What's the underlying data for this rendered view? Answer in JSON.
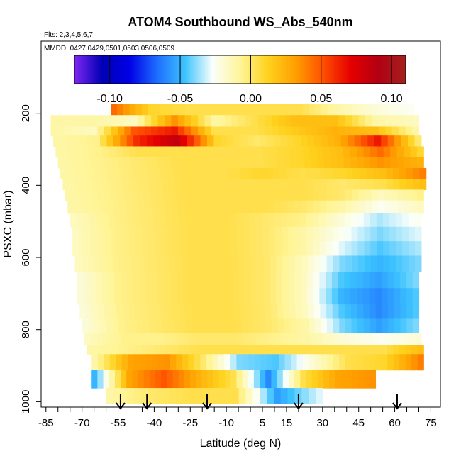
{
  "chart_data": {
    "type": "heatmap",
    "title": "ATOM4 Southbound WS_Abs_540nm",
    "annotations": {
      "flights": "Flts: 2,3,4,5,6,7",
      "dates": "MMDD: 0427,0429,0501,0503,0506,0509"
    },
    "xlabel": "Latitude (deg N)",
    "ylabel": "PSXC (mbar)",
    "x_range": [
      -87,
      79
    ],
    "y_range": [
      1015,
      0
    ],
    "y_inverted": true,
    "x_ticks": [
      -85,
      -70,
      -55,
      -40,
      -25,
      -10,
      5,
      15,
      30,
      45,
      60,
      75
    ],
    "x_minor_tick_step": 5,
    "y_ticks": [
      200,
      400,
      600,
      800,
      1000
    ],
    "colorbar": {
      "range": [
        -0.125,
        0.11
      ],
      "ticks": [
        -0.1,
        -0.05,
        0.0,
        0.05,
        0.1
      ],
      "tick_labels": [
        "-0.10",
        "-0.05",
        "0.00",
        "0.05",
        "0.10"
      ],
      "colors": [
        "#7f26f2",
        "#0000b4",
        "#0000e6",
        "#1e6eff",
        "#3cc3ff",
        "#fafffa",
        "#fff59b",
        "#ffd21e",
        "#ffa000",
        "#ff5000",
        "#e60000",
        "#b20012",
        "#a3201e"
      ]
    },
    "layers": [
      {
        "p": [
          175,
          205
        ],
        "lat": [
          -58,
          68
        ],
        "values": [
          0.045,
          0.01,
          0.005,
          0.005,
          0.005,
          0.005,
          -0.01,
          -0.02,
          -0.025
        ]
      },
      {
        "p": [
          205,
          237
        ],
        "lat": [
          -83,
          70
        ],
        "values": [
          -0.01,
          -0.01,
          -0.015,
          0.035,
          -0.01,
          0.005,
          0.02,
          0.02,
          -0.01,
          -0.015
        ]
      },
      {
        "p": [
          237,
          262
        ],
        "lat": [
          -83,
          70
        ],
        "values": [
          -0.01,
          -0.015,
          0.05,
          0.065,
          0.005,
          0.005,
          0.015,
          0.025,
          0.02,
          -0.01
        ]
      },
      {
        "p": [
          262,
          292
        ],
        "lat": [
          -82,
          71
        ],
        "values": [
          -0.01,
          -0.005,
          0.06,
          0.085,
          0.01,
          0.0,
          0.01,
          0.025,
          0.065,
          0.0
        ]
      },
      {
        "p": [
          292,
          322
        ],
        "lat": [
          -81,
          72
        ],
        "values": [
          -0.01,
          -0.005,
          0.005,
          0.005,
          0.005,
          0.005,
          0.01,
          0.02,
          0.045,
          0.01
        ]
      },
      {
        "p": [
          322,
          352
        ],
        "lat": [
          -80,
          72
        ],
        "values": [
          -0.01,
          -0.005,
          0.0,
          0.005,
          0.005,
          0.005,
          0.01,
          0.02,
          0.035,
          0.025
        ]
      },
      {
        "p": [
          352,
          382
        ],
        "lat": [
          -79,
          73
        ],
        "values": [
          -0.01,
          -0.005,
          0.0,
          0.005,
          0.005,
          0.01,
          0.005,
          0.01,
          0.02,
          0.04
        ]
      },
      {
        "p": [
          382,
          412
        ],
        "lat": [
          -78,
          73
        ],
        "values": [
          -0.01,
          -0.005,
          0.0,
          0.005,
          0.005,
          0.005,
          0.005,
          0.0,
          0.005,
          0.02
        ]
      },
      {
        "p": [
          412,
          442
        ],
        "lat": [
          -77,
          72
        ],
        "values": [
          -0.01,
          -0.005,
          0.0,
          0.005,
          0.005,
          0.005,
          0.005,
          0.0,
          -0.015,
          -0.005
        ]
      },
      {
        "p": [
          442,
          478
        ],
        "lat": [
          -76,
          72
        ],
        "values": [
          -0.01,
          -0.005,
          0.0,
          0.005,
          0.005,
          0.005,
          0.0,
          -0.01,
          -0.025,
          -0.015
        ]
      },
      {
        "p": [
          478,
          515
        ],
        "lat": [
          -75,
          71
        ],
        "values": [
          -0.015,
          -0.005,
          0.0,
          0.005,
          0.005,
          0.0,
          -0.005,
          -0.02,
          -0.035,
          -0.025
        ]
      },
      {
        "p": [
          515,
          555
        ],
        "lat": [
          -74,
          71
        ],
        "values": [
          -0.015,
          -0.005,
          0.0,
          0.005,
          0.005,
          0.0,
          -0.01,
          -0.025,
          -0.04,
          -0.03
        ]
      },
      {
        "p": [
          555,
          595
        ],
        "lat": [
          -74,
          71
        ],
        "values": [
          -0.015,
          -0.005,
          0.0,
          0.005,
          0.005,
          0.0,
          -0.01,
          -0.03,
          -0.045,
          -0.035
        ]
      },
      {
        "p": [
          595,
          640
        ],
        "lat": [
          -73,
          71
        ],
        "values": [
          -0.015,
          -0.005,
          0.0,
          0.005,
          0.005,
          0.0,
          -0.015,
          -0.04,
          -0.05,
          -0.04
        ]
      },
      {
        "p": [
          640,
          685
        ],
        "lat": [
          -72,
          70
        ],
        "values": [
          -0.02,
          -0.005,
          0.0,
          0.005,
          0.005,
          0.0,
          -0.015,
          -0.045,
          -0.055,
          -0.04
        ]
      },
      {
        "p": [
          685,
          730
        ],
        "lat": [
          -72,
          70
        ],
        "values": [
          -0.02,
          -0.005,
          0.0,
          0.005,
          0.005,
          0.0,
          -0.015,
          -0.05,
          -0.06,
          -0.045
        ]
      },
      {
        "p": [
          730,
          770
        ],
        "lat": [
          -71,
          70
        ],
        "values": [
          -0.02,
          -0.005,
          0.0,
          0.005,
          0.005,
          0.0,
          -0.015,
          -0.045,
          -0.06,
          -0.045
        ]
      },
      {
        "p": [
          770,
          810
        ],
        "lat": [
          -70,
          70
        ],
        "values": [
          -0.02,
          -0.005,
          0.0,
          0.005,
          0.005,
          0.0,
          -0.01,
          -0.04,
          -0.055,
          -0.04
        ]
      },
      {
        "p": [
          810,
          842
        ],
        "lat": [
          -69,
          71
        ],
        "values": [
          -0.015,
          -0.005,
          -0.005,
          0.0,
          0.0,
          -0.005,
          -0.01,
          -0.02,
          -0.025,
          -0.02
        ]
      },
      {
        "p": [
          842,
          868
        ],
        "lat": [
          -68,
          72
        ],
        "values": [
          -0.01,
          -0.005,
          0.0,
          0.005,
          0.005,
          0.005,
          0.005,
          0.005,
          0.005,
          0.02
        ]
      },
      {
        "p": [
          868,
          912
        ],
        "lat": [
          -66,
          72
        ],
        "values": [
          -0.01,
          0.03,
          0.035,
          0.0,
          -0.04,
          -0.045,
          -0.02,
          0.005,
          0.01,
          0.04
        ]
      },
      {
        "p": [
          912,
          962
        ],
        "lat": [
          -66,
          52
        ],
        "values": [
          -0.05,
          0.03,
          0.05,
          0.025,
          0.005,
          -0.06,
          0.005,
          0.03,
          0.035
        ]
      },
      {
        "p": [
          962,
          1005
        ],
        "lat": [
          -60,
          30
        ],
        "values": [
          -0.01,
          0.0,
          0.005,
          0.005,
          -0.055,
          -0.03
        ]
      }
    ],
    "flight_arrows_lat": [
      -54,
      -43,
      -18,
      20,
      61
    ]
  }
}
